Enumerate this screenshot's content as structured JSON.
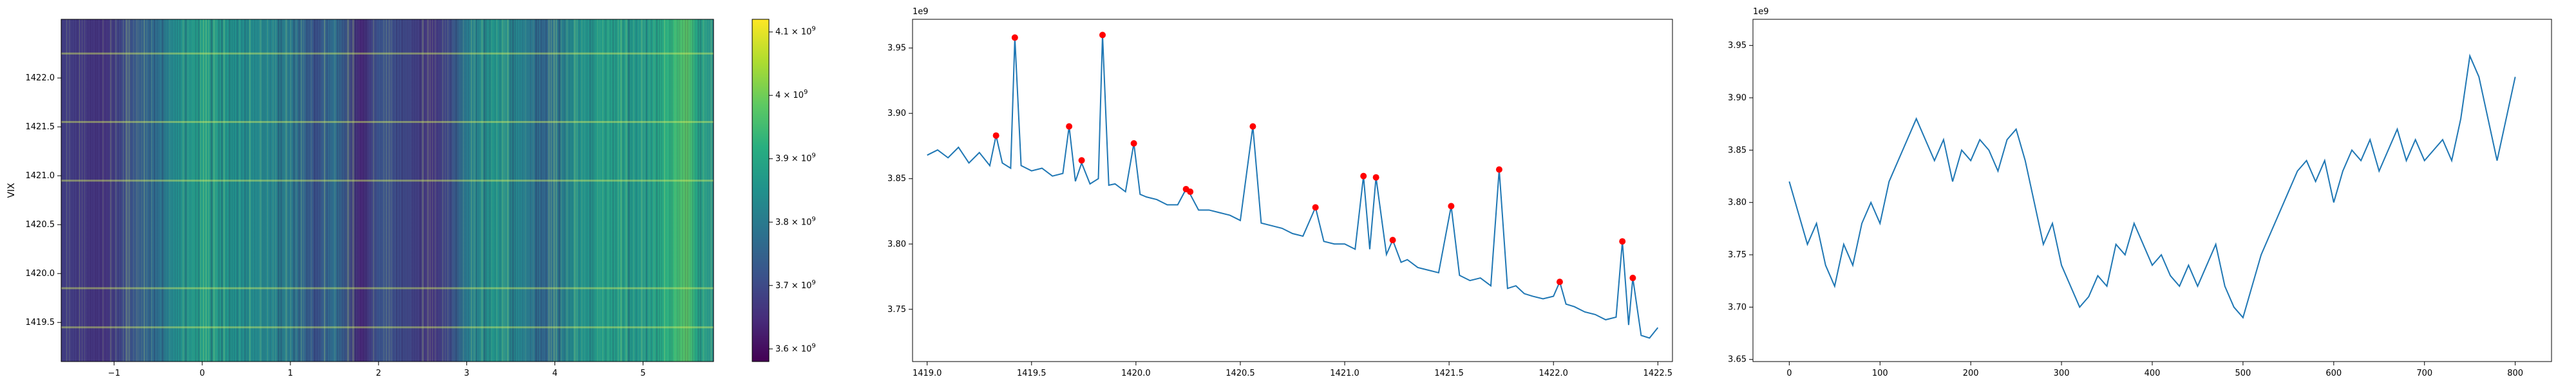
{
  "chart_data": [
    {
      "type": "heatmap",
      "ylabel": "VIX",
      "xlim": [
        -1.6,
        5.8
      ],
      "ylim": [
        1419.1,
        1422.6
      ],
      "xticks": [
        "−1",
        "0",
        "1",
        "2",
        "3",
        "4",
        "5"
      ],
      "xtick_values": [
        -1,
        0,
        1,
        2,
        3,
        4,
        5
      ],
      "yticks": [
        "1419.5",
        "1420.0",
        "1420.5",
        "1421.0",
        "1421.5",
        "1422.0"
      ],
      "ytick_values": [
        1419.5,
        1420.0,
        1420.5,
        1421.0,
        1421.5,
        1422.0
      ],
      "colormap": "viridis",
      "column_profile": [
        {
          "x": -1.6,
          "v": 3.68
        },
        {
          "x": -1.1,
          "v": 3.66
        },
        {
          "x": -0.9,
          "v": 3.7
        },
        {
          "x": -0.5,
          "v": 3.78
        },
        {
          "x": -0.3,
          "v": 3.84
        },
        {
          "x": 0.0,
          "v": 3.88
        },
        {
          "x": 0.4,
          "v": 3.85
        },
        {
          "x": 0.8,
          "v": 3.82
        },
        {
          "x": 1.0,
          "v": 3.8
        },
        {
          "x": 1.3,
          "v": 3.72
        },
        {
          "x": 1.5,
          "v": 3.78
        },
        {
          "x": 1.8,
          "v": 3.64
        },
        {
          "x": 2.0,
          "v": 3.72
        },
        {
          "x": 2.3,
          "v": 3.7
        },
        {
          "x": 2.6,
          "v": 3.66
        },
        {
          "x": 2.8,
          "v": 3.7
        },
        {
          "x": 3.0,
          "v": 3.8
        },
        {
          "x": 3.3,
          "v": 3.86
        },
        {
          "x": 3.6,
          "v": 3.82
        },
        {
          "x": 3.9,
          "v": 3.76
        },
        {
          "x": 4.2,
          "v": 3.84
        },
        {
          "x": 4.6,
          "v": 3.88
        },
        {
          "x": 5.0,
          "v": 3.86
        },
        {
          "x": 5.3,
          "v": 3.92
        },
        {
          "x": 5.5,
          "v": 3.98
        },
        {
          "x": 5.6,
          "v": 3.9
        },
        {
          "x": 5.8,
          "v": 3.84
        }
      ],
      "row_highlights": [
        1419.45,
        1419.85,
        1420.95,
        1421.55,
        1422.25
      ],
      "colorbar": {
        "ticks": [
          "3.6",
          "3.7",
          "3.8",
          "3.9",
          "4",
          "4.1"
        ],
        "tick_values": [
          3.6,
          3.7,
          3.8,
          3.9,
          4.0,
          4.1
        ],
        "exponent": "9",
        "base": "10",
        "range": [
          3.58,
          4.12
        ]
      }
    },
    {
      "type": "line",
      "offset_label": "1e9",
      "xlim": [
        1418.93,
        1422.57
      ],
      "ylim": [
        3.71,
        3.972
      ],
      "xticks": [
        "1419.0",
        "1419.5",
        "1420.0",
        "1420.5",
        "1421.0",
        "1421.5",
        "1422.0",
        "1422.5"
      ],
      "xtick_values": [
        1419.0,
        1419.5,
        1420.0,
        1420.5,
        1421.0,
        1421.5,
        1422.0,
        1422.5
      ],
      "yticks": [
        "3.75",
        "3.80",
        "3.85",
        "3.90",
        "3.95"
      ],
      "ytick_values": [
        3.75,
        3.8,
        3.85,
        3.9,
        3.95
      ],
      "line_color": "#1f77b4",
      "marker_color": "#ff0000",
      "series": [
        {
          "x": [
            1419.0,
            1419.05,
            1419.1,
            1419.15,
            1419.2,
            1419.25,
            1419.3,
            1419.33,
            1419.36,
            1419.4,
            1419.42,
            1419.45,
            1419.5,
            1419.55,
            1419.6,
            1419.65,
            1419.68,
            1419.71,
            1419.74,
            1419.78,
            1419.82,
            1419.84,
            1419.87,
            1419.9,
            1419.95,
            1419.99,
            1420.02,
            1420.05,
            1420.1,
            1420.15,
            1420.2,
            1420.24,
            1420.26,
            1420.3,
            1420.35,
            1420.4,
            1420.45,
            1420.5,
            1420.56,
            1420.6,
            1420.65,
            1420.7,
            1420.75,
            1420.8,
            1420.86,
            1420.9,
            1420.95,
            1421.0,
            1421.05,
            1421.09,
            1421.12,
            1421.15,
            1421.2,
            1421.23,
            1421.27,
            1421.3,
            1421.35,
            1421.4,
            1421.45,
            1421.51,
            1421.55,
            1421.6,
            1421.65,
            1421.7,
            1421.74,
            1421.78,
            1421.82,
            1421.86,
            1421.9,
            1421.95,
            1422.0,
            1422.03,
            1422.06,
            1422.1,
            1422.15,
            1422.2,
            1422.25,
            1422.3,
            1422.33,
            1422.36,
            1422.38,
            1422.42,
            1422.46,
            1422.5
          ],
          "y": [
            3.868,
            3.872,
            3.866,
            3.874,
            3.862,
            3.87,
            3.86,
            3.883,
            3.862,
            3.858,
            3.958,
            3.86,
            3.856,
            3.858,
            3.852,
            3.854,
            3.89,
            3.848,
            3.862,
            3.846,
            3.85,
            3.96,
            3.845,
            3.846,
            3.84,
            3.877,
            3.838,
            3.836,
            3.834,
            3.83,
            3.83,
            3.842,
            3.838,
            3.826,
            3.826,
            3.824,
            3.822,
            3.818,
            3.89,
            3.816,
            3.814,
            3.812,
            3.808,
            3.806,
            3.828,
            3.802,
            3.8,
            3.8,
            3.796,
            3.852,
            3.796,
            3.851,
            3.792,
            3.803,
            3.786,
            3.788,
            3.782,
            3.78,
            3.778,
            3.829,
            3.776,
            3.772,
            3.774,
            3.768,
            3.857,
            3.766,
            3.768,
            3.762,
            3.76,
            3.758,
            3.76,
            3.771,
            3.754,
            3.752,
            3.748,
            3.746,
            3.742,
            3.744,
            3.802,
            3.738,
            3.774,
            3.73,
            3.728,
            3.736
          ]
        },
        {
          "x": [
            1419.33,
            1419.42,
            1419.68,
            1419.74,
            1419.84,
            1419.99,
            1420.24,
            1420.26,
            1420.56,
            1420.86,
            1421.09,
            1421.15,
            1421.23,
            1421.51,
            1421.74,
            1422.03,
            1422.33,
            1422.38
          ],
          "y": [
            3.883,
            3.958,
            3.89,
            3.864,
            3.96,
            3.877,
            3.842,
            3.84,
            3.89,
            3.828,
            3.852,
            3.851,
            3.803,
            3.829,
            3.857,
            3.771,
            3.802,
            3.774
          ]
        }
      ]
    },
    {
      "type": "line",
      "offset_label": "1e9",
      "xlim": [
        -40,
        840
      ],
      "ylim": [
        3.648,
        3.975
      ],
      "xticks": [
        "0",
        "100",
        "200",
        "300",
        "400",
        "500",
        "600",
        "700",
        "800"
      ],
      "xtick_values": [
        0,
        100,
        200,
        300,
        400,
        500,
        600,
        700,
        800
      ],
      "yticks": [
        "3.65",
        "3.70",
        "3.75",
        "3.80",
        "3.85",
        "3.90",
        "3.95"
      ],
      "ytick_values": [
        3.65,
        3.7,
        3.75,
        3.8,
        3.85,
        3.9,
        3.95
      ],
      "line_color": "#1f77b4",
      "series": [
        {
          "x": [
            0,
            10,
            20,
            30,
            40,
            50,
            60,
            70,
            80,
            90,
            100,
            110,
            120,
            130,
            140,
            150,
            160,
            170,
            180,
            190,
            200,
            210,
            220,
            230,
            240,
            250,
            260,
            270,
            280,
            290,
            300,
            310,
            320,
            330,
            340,
            350,
            360,
            370,
            380,
            390,
            400,
            410,
            420,
            430,
            440,
            450,
            460,
            470,
            480,
            490,
            500,
            510,
            520,
            530,
            540,
            550,
            560,
            570,
            580,
            590,
            600,
            610,
            620,
            630,
            640,
            650,
            660,
            670,
            680,
            690,
            700,
            710,
            720,
            730,
            740,
            750,
            760,
            770,
            780,
            790,
            800
          ],
          "y": [
            3.82,
            3.79,
            3.76,
            3.78,
            3.74,
            3.72,
            3.76,
            3.74,
            3.78,
            3.8,
            3.78,
            3.82,
            3.84,
            3.86,
            3.88,
            3.86,
            3.84,
            3.86,
            3.82,
            3.85,
            3.84,
            3.86,
            3.85,
            3.83,
            3.86,
            3.87,
            3.84,
            3.8,
            3.76,
            3.78,
            3.74,
            3.72,
            3.7,
            3.71,
            3.73,
            3.72,
            3.76,
            3.75,
            3.78,
            3.76,
            3.74,
            3.75,
            3.73,
            3.72,
            3.74,
            3.72,
            3.74,
            3.76,
            3.72,
            3.7,
            3.69,
            3.72,
            3.75,
            3.77,
            3.79,
            3.81,
            3.83,
            3.84,
            3.82,
            3.84,
            3.8,
            3.83,
            3.85,
            3.84,
            3.86,
            3.83,
            3.85,
            3.87,
            3.84,
            3.86,
            3.84,
            3.85,
            3.86,
            3.84,
            3.88,
            3.94,
            3.92,
            3.88,
            3.84,
            3.88,
            3.92
          ]
        }
      ]
    }
  ]
}
